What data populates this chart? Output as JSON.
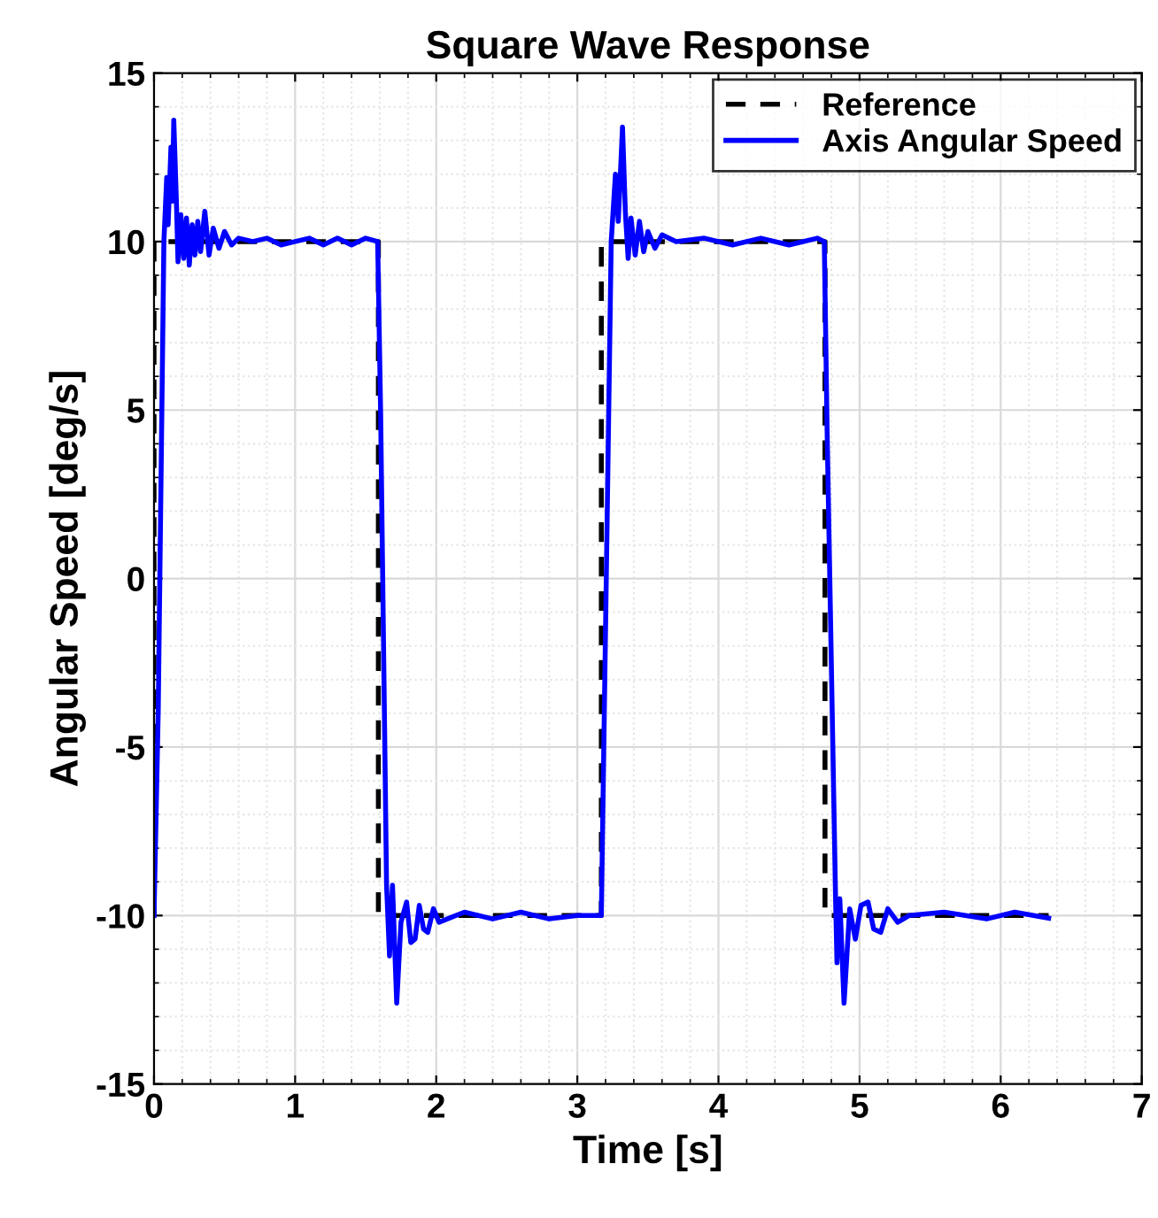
{
  "chart_data": {
    "type": "line",
    "title": "Square Wave Response",
    "xlabel": "Time [s]",
    "ylabel": "Angular Speed [deg/s]",
    "xlim": [
      0,
      7
    ],
    "xticks": [
      0,
      1,
      2,
      3,
      4,
      5,
      6,
      7
    ],
    "ylim": [
      -15,
      15
    ],
    "yticks": [
      -15,
      -10,
      -5,
      0,
      5,
      10,
      15
    ],
    "grid": true,
    "legend": "top right",
    "series": [
      {
        "name": "Reference",
        "color": "#000000",
        "line_style": "dashed",
        "x": [
          0,
          0,
          1.59,
          1.59,
          3.17,
          3.17,
          4.755,
          4.755,
          6.34
        ],
        "values": [
          -10,
          10,
          10,
          -10,
          -10,
          10,
          10,
          -10,
          -10
        ]
      },
      {
        "name": "Axis Angular Speed",
        "color": "#0000ff",
        "line_style": "solid",
        "x": [
          0,
          0.03,
          0.07,
          0.09,
          0.1,
          0.12,
          0.13,
          0.14,
          0.16,
          0.17,
          0.19,
          0.21,
          0.23,
          0.25,
          0.27,
          0.29,
          0.31,
          0.33,
          0.36,
          0.39,
          0.42,
          0.46,
          0.5,
          0.55,
          0.6,
          0.7,
          0.8,
          0.9,
          1.0,
          1.1,
          1.2,
          1.3,
          1.4,
          1.5,
          1.585,
          1.606,
          1.648,
          1.669,
          1.69,
          1.72,
          1.75,
          1.79,
          1.82,
          1.85,
          1.88,
          1.91,
          1.94,
          1.98,
          2.02,
          2.2,
          2.4,
          2.6,
          2.8,
          3.0,
          3.17,
          3.24,
          3.27,
          3.29,
          3.32,
          3.34,
          3.36,
          3.38,
          3.41,
          3.44,
          3.47,
          3.5,
          3.55,
          3.6,
          3.7,
          3.9,
          4.1,
          4.3,
          4.5,
          4.7,
          4.75,
          4.77,
          4.83,
          4.84,
          4.86,
          4.89,
          4.93,
          4.97,
          5.01,
          5.06,
          5.1,
          5.15,
          5.2,
          5.27,
          5.35,
          5.6,
          5.9,
          6.1,
          6.34
        ],
        "values": [
          -10,
          -3.9,
          10,
          11.9,
          10.5,
          12.8,
          11.2,
          13.6,
          11.0,
          9.4,
          10.8,
          9.5,
          10.7,
          9.3,
          10.5,
          9.6,
          10.6,
          9.7,
          10.9,
          9.6,
          10.4,
          9.8,
          10.3,
          9.9,
          10.1,
          10.0,
          10.1,
          9.9,
          10.0,
          10.1,
          9.9,
          10.1,
          9.9,
          10.1,
          10.0,
          4.9,
          -9.1,
          -11.2,
          -9.1,
          -12.6,
          -10.2,
          -9.6,
          -10.8,
          -10.7,
          -9.7,
          -10.4,
          -10.5,
          -9.8,
          -10.2,
          -9.9,
          -10.1,
          -9.9,
          -10.1,
          -10.0,
          -10.0,
          10.0,
          12.0,
          10.6,
          13.4,
          10.9,
          9.5,
          10.7,
          9.6,
          10.6,
          9.7,
          10.3,
          9.8,
          10.2,
          10.0,
          10.1,
          9.9,
          10.1,
          9.9,
          10.1,
          10.0,
          4.4,
          -9.5,
          -11.4,
          -9.5,
          -12.6,
          -9.8,
          -10.7,
          -9.7,
          -9.6,
          -10.4,
          -10.5,
          -9.8,
          -10.2,
          -10.0,
          -9.9,
          -10.1,
          -9.9,
          -10.08
        ]
      }
    ]
  }
}
